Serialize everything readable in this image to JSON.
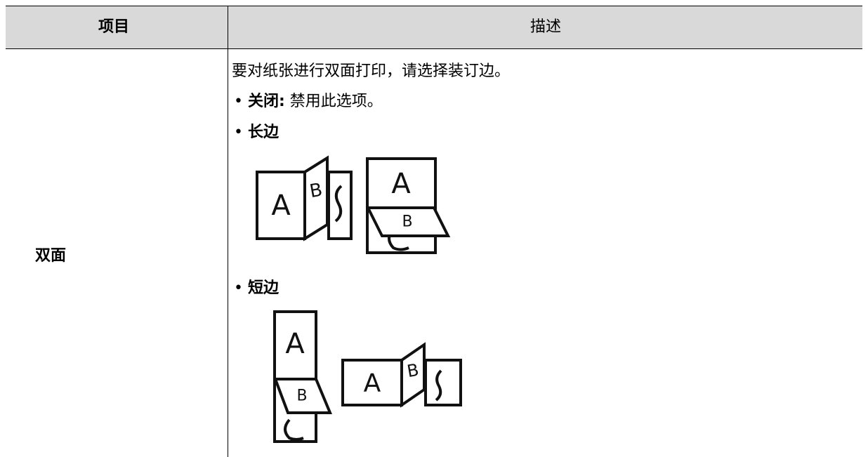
{
  "table": {
    "header": [
      "项目",
      "描述"
    ],
    "rows": [
      {
        "item": "双面",
        "intro": "要对纸张进行双面打印，请选择装订边。",
        "options": [
          {
            "label": "关闭:",
            "text": "禁用此选项。"
          },
          {
            "label": "长边"
          },
          {
            "label": "短边"
          }
        ]
      }
    ]
  },
  "icon_letters": {
    "front": "A",
    "back": "B"
  }
}
